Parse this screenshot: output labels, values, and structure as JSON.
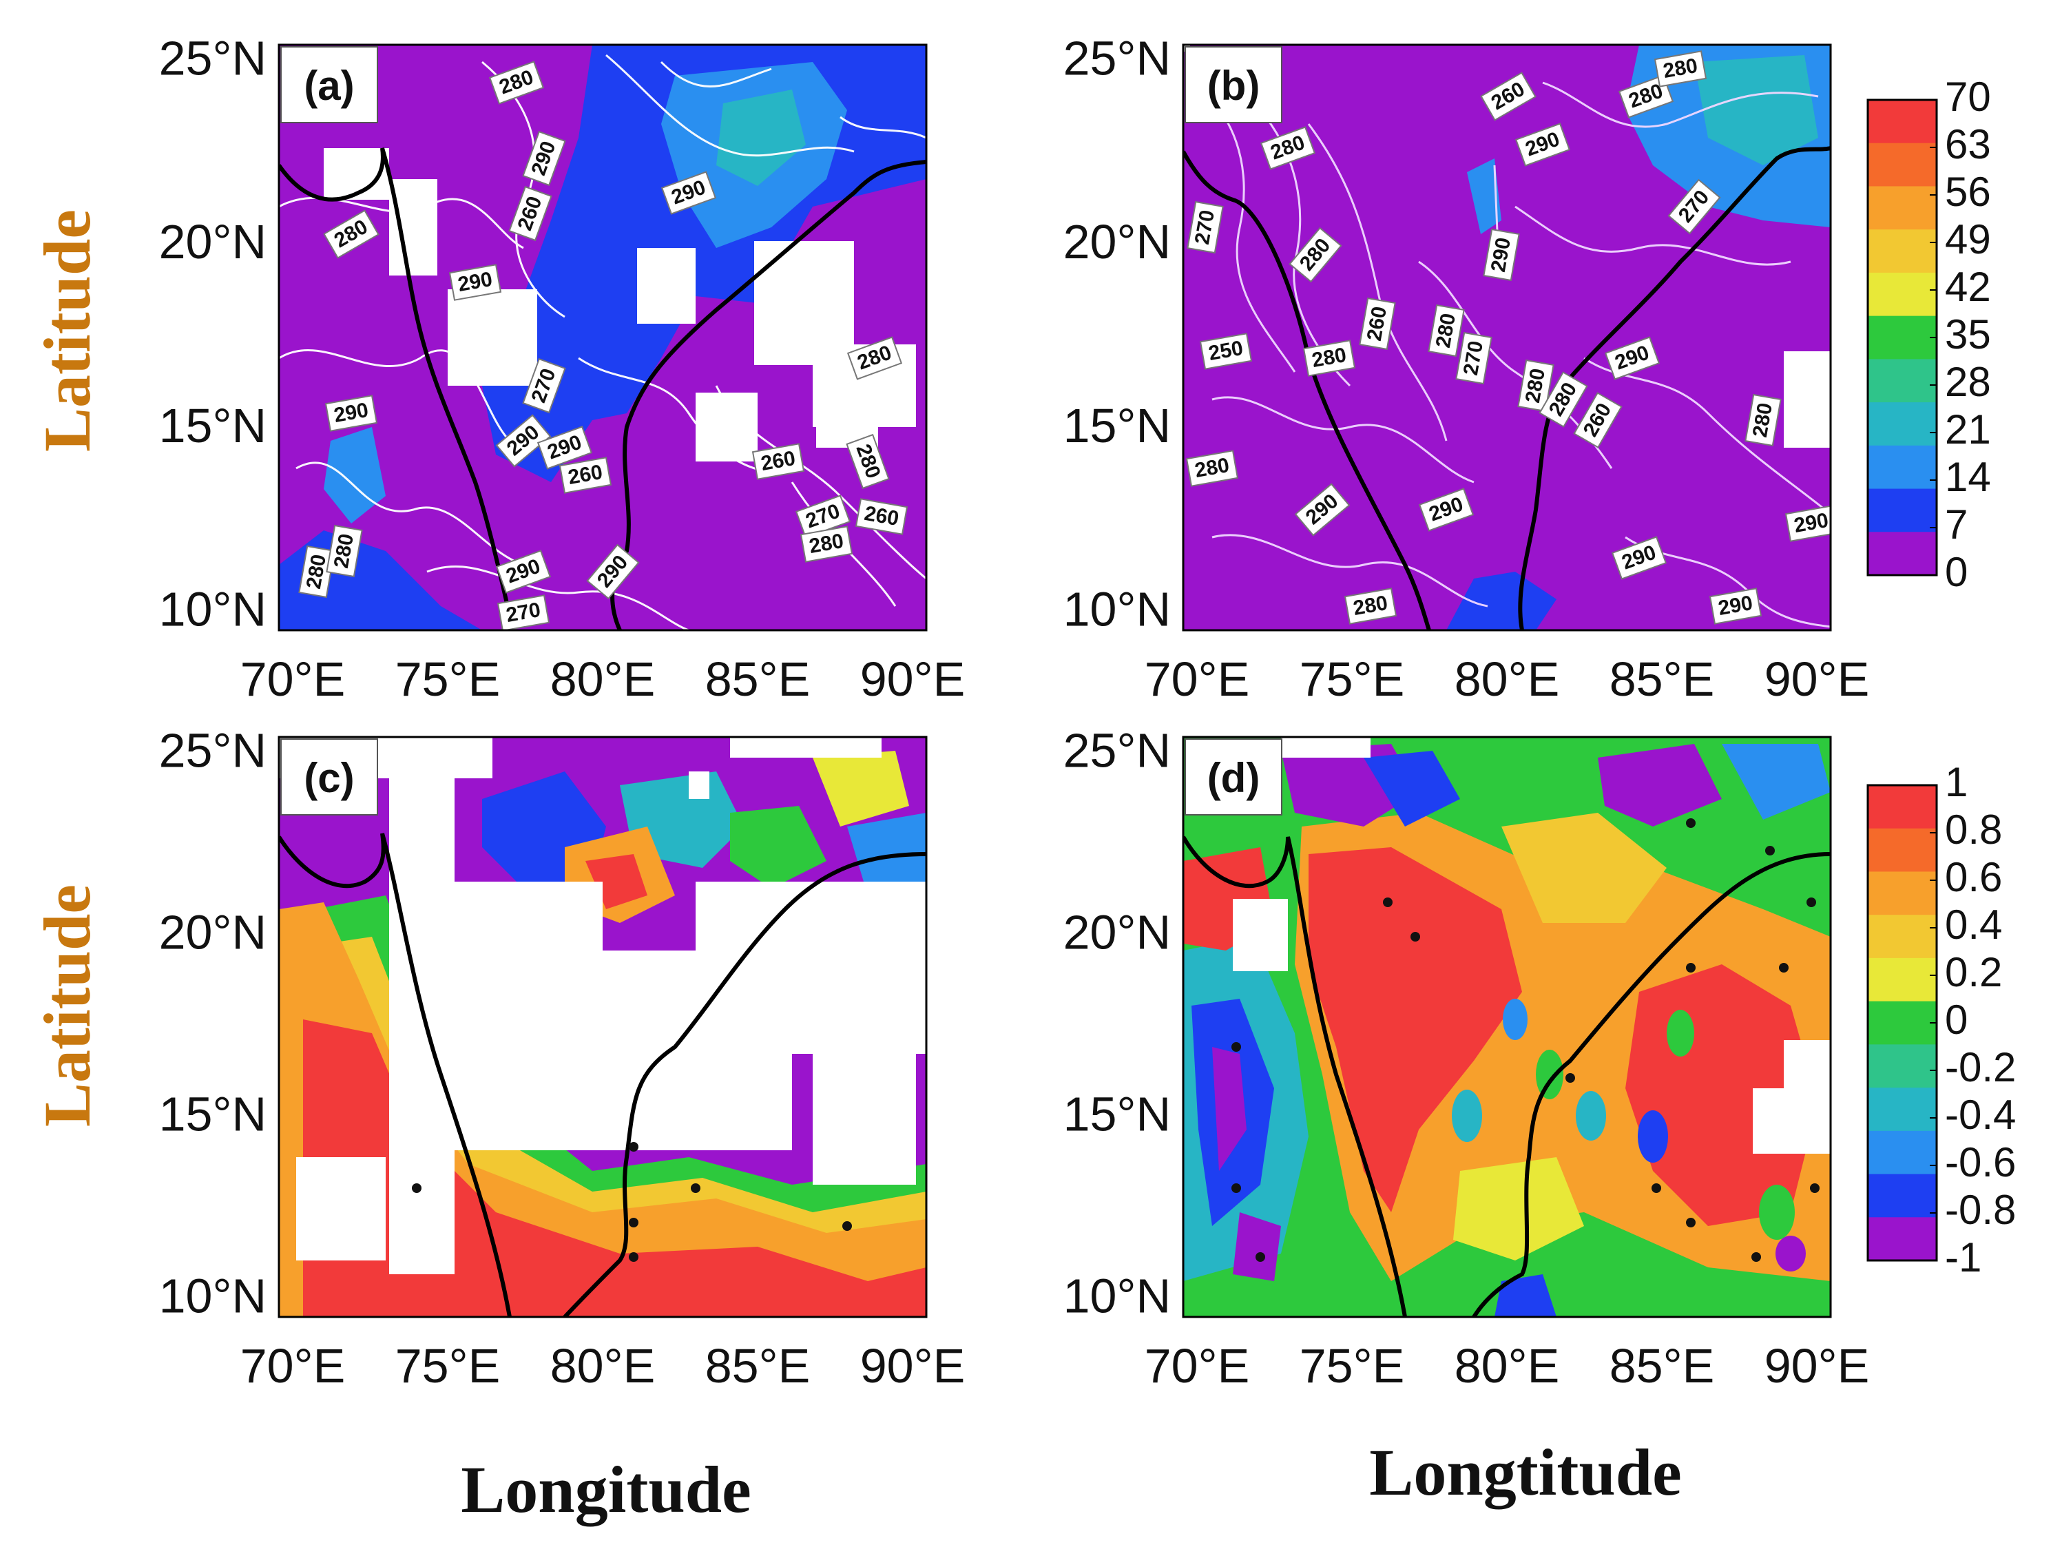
{
  "figure": {
    "y_axis_label": "Latitude",
    "x_axis_label_left": "Longitude",
    "x_axis_label_right": "Longtitude"
  },
  "axes": {
    "lon_ticks": [
      "70°E",
      "75°E",
      "80°E",
      "85°E",
      "90°E"
    ],
    "lat_ticks": [
      "25°N",
      "20°N",
      "15°N",
      "10°N"
    ],
    "lon_range": [
      70,
      90
    ],
    "lat_range": [
      9.5,
      25
    ]
  },
  "panels": [
    {
      "id": "a",
      "label": "(a)",
      "field": "magnitude 0–70",
      "background": "#9a14cc",
      "contour_labels": [
        "280",
        "290",
        "290",
        "260",
        "280",
        "290",
        "270",
        "290",
        "290",
        "290",
        "280",
        "260",
        "280",
        "270",
        "260",
        "280",
        "280",
        "290",
        "290",
        "280",
        "260",
        "270"
      ]
    },
    {
      "id": "b",
      "label": "(b)",
      "field": "magnitude 0–70",
      "background": "#9a14cc",
      "contour_labels": [
        "280",
        "280",
        "260",
        "280",
        "290",
        "280",
        "270",
        "260",
        "280",
        "290",
        "250",
        "280",
        "270",
        "280",
        "290",
        "280",
        "260",
        "270",
        "280",
        "280",
        "290",
        "290",
        "290",
        "280",
        "290",
        "290"
      ]
    },
    {
      "id": "c",
      "label": "(c)",
      "field": "correlation -1–1",
      "background": "#9a14cc",
      "contour_labels": []
    },
    {
      "id": "d",
      "label": "(d)",
      "field": "correlation -1–1",
      "background": "#9a14cc",
      "contour_labels": []
    }
  ],
  "colorbars": [
    {
      "id": "top",
      "ticks": [
        "70",
        "63",
        "56",
        "49",
        "42",
        "35",
        "28",
        "21",
        "14",
        "7",
        "0"
      ],
      "colors": [
        "#f23a3a",
        "#f56a2a",
        "#f7a02c",
        "#f2c832",
        "#e8e838",
        "#2dc93d",
        "#2fc48a",
        "#27b5c5",
        "#2a8ff0",
        "#1e3ff2",
        "#9a14cc"
      ]
    },
    {
      "id": "bottom",
      "ticks": [
        "1",
        "0.8",
        "0.6",
        "0.4",
        "0.2",
        "0",
        "-0.2",
        "-0.4",
        "-0.6",
        "-0.8",
        "-1"
      ],
      "colors": [
        "#f23a3a",
        "#f56a2a",
        "#f7a02c",
        "#f2c832",
        "#e8e838",
        "#2dc93d",
        "#2fc48a",
        "#27b5c5",
        "#2a8ff0",
        "#1e3ff2",
        "#9a14cc"
      ]
    }
  ]
}
